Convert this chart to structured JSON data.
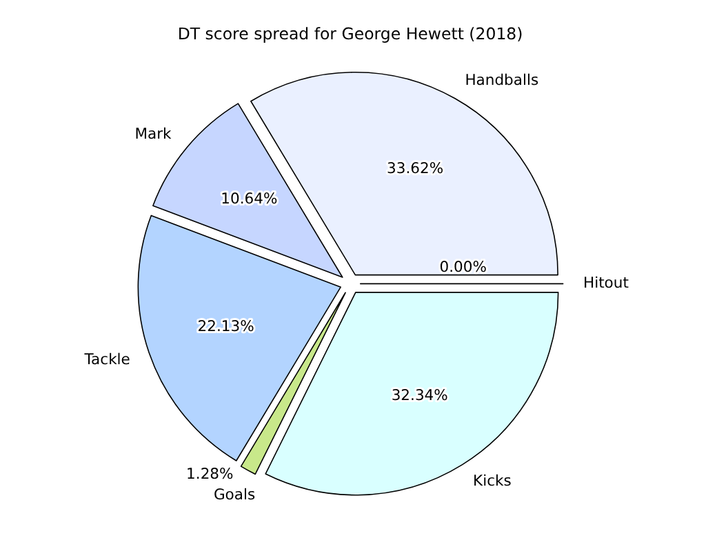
{
  "chart_data": {
    "type": "pie",
    "title": "DT score spread for George Hewett (2018)",
    "categories": [
      "Handballs",
      "Mark",
      "Tackle",
      "Goals",
      "Kicks",
      "Hitout"
    ],
    "values": [
      33.62,
      10.64,
      22.13,
      1.28,
      32.34,
      0.0
    ],
    "colors": [
      "#eaf0ff",
      "#c6d6ff",
      "#b3d4ff",
      "#c8e88a",
      "#d9ffff",
      "#ffffff"
    ],
    "value_labels": [
      "33.62%",
      "10.64%",
      "22.13%",
      "1.28%",
      "32.34%",
      "0.00%"
    ],
    "data_labels": true
  }
}
